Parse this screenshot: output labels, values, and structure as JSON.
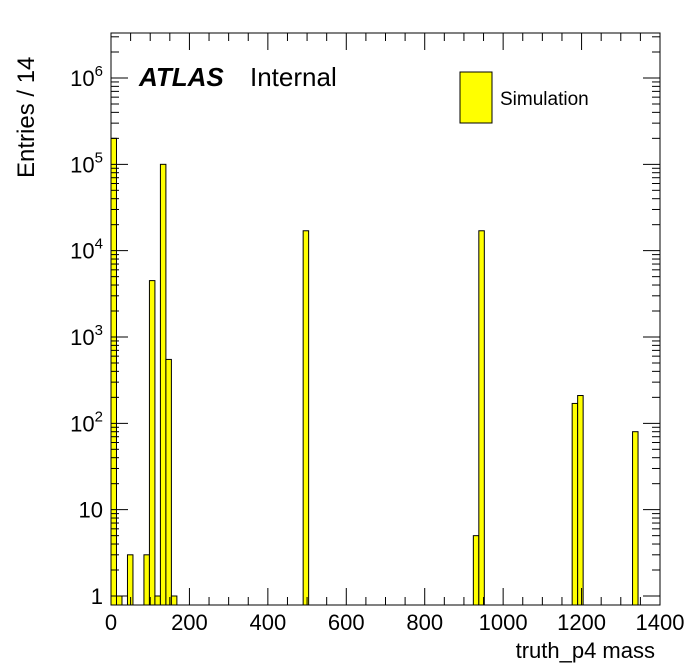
{
  "chart_data": {
    "type": "bar",
    "xlabel": "truth_p4 mass",
    "ylabel": "Entries / 14",
    "xlim": [
      0,
      1400
    ],
    "ylim": [
      1,
      1000000
    ],
    "log_y": true,
    "bin_width": 14,
    "x_ticks": [
      0,
      200,
      400,
      600,
      800,
      1000,
      1200,
      1400
    ],
    "y_ticks": [
      {
        "value": 1,
        "base": "1",
        "exp": ""
      },
      {
        "value": 10,
        "base": "10",
        "exp": ""
      },
      {
        "value": 100,
        "base": "10",
        "exp": "2"
      },
      {
        "value": 1000,
        "base": "10",
        "exp": "3"
      },
      {
        "value": 10000,
        "base": "10",
        "exp": "4"
      },
      {
        "value": 100000,
        "base": "10",
        "exp": "5"
      },
      {
        "value": 1000000,
        "base": "10",
        "exp": "6"
      }
    ],
    "bins": [
      {
        "x_low": 0,
        "value": 200000
      },
      {
        "x_low": 14,
        "value": 1
      },
      {
        "x_low": 42,
        "value": 3
      },
      {
        "x_low": 84,
        "value": 3
      },
      {
        "x_low": 98,
        "value": 4500
      },
      {
        "x_low": 112,
        "value": 1
      },
      {
        "x_low": 126,
        "value": 100000
      },
      {
        "x_low": 140,
        "value": 550
      },
      {
        "x_low": 154,
        "value": 1
      },
      {
        "x_low": 490,
        "value": 17000
      },
      {
        "x_low": 924,
        "value": 5
      },
      {
        "x_low": 938,
        "value": 17000
      },
      {
        "x_low": 1176,
        "value": 170
      },
      {
        "x_low": 1190,
        "value": 210
      },
      {
        "x_low": 1330,
        "value": 80
      }
    ],
    "legend": {
      "label": "Simulation",
      "position": "top-right"
    },
    "colors": {
      "fill": "#ffff00",
      "line": "#000000"
    }
  },
  "atlas_label": {
    "bold": "ATLAS",
    "normal": "Internal"
  }
}
